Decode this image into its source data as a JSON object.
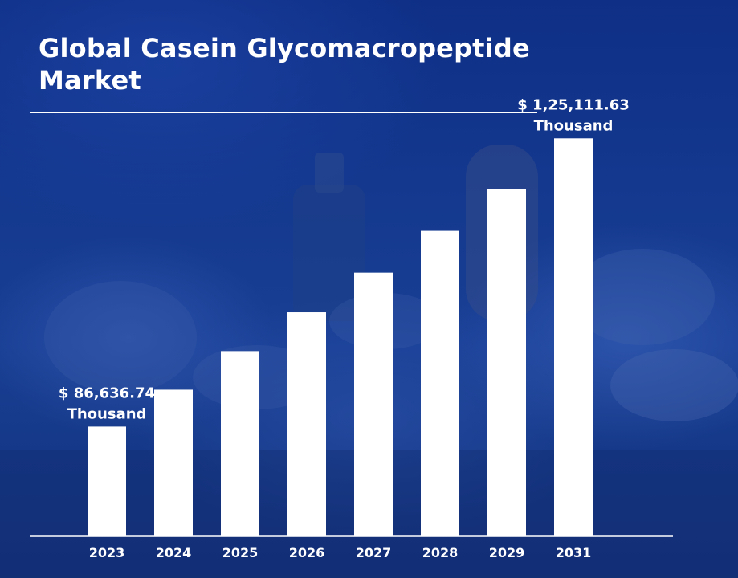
{
  "title": "Global Casein Glycomacropeptide Market",
  "colors": {
    "bar": "#ffffff",
    "background": "#14398f",
    "text": "#ffffff"
  },
  "chart_data": {
    "type": "bar",
    "categories": [
      "2023",
      "2024",
      "2025",
      "2026",
      "2027",
      "2028",
      "2029",
      "2031"
    ],
    "values": [
      86636.74,
      91560,
      96710,
      101890,
      107180,
      112760,
      118350,
      125111.63
    ],
    "ylim": [
      72000,
      127500
    ],
    "grid": false,
    "legend": "none",
    "annotations": [
      {
        "index": 0,
        "lines": [
          "$ 86,636.74",
          "Thousand"
        ]
      },
      {
        "index": 7,
        "lines": [
          "$ 1,25,111.63",
          "Thousand"
        ]
      }
    ]
  }
}
